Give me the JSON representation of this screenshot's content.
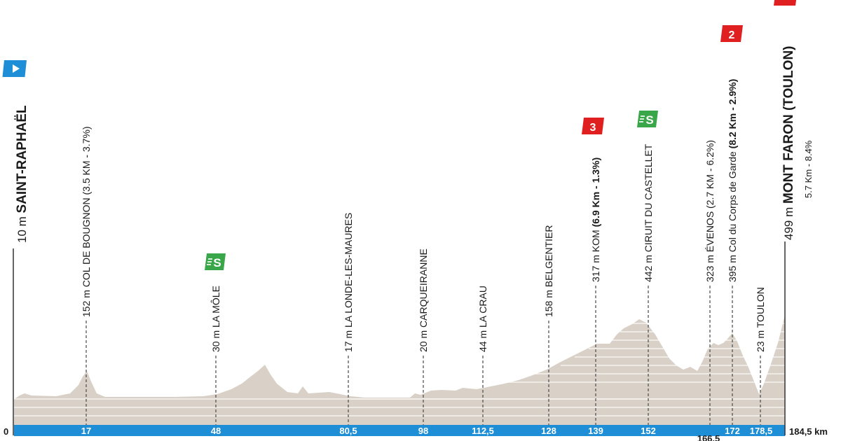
{
  "start": {
    "altitude": "10 m",
    "name": "SAINT-RAPHAËL",
    "km_label": "0"
  },
  "finish": {
    "altitude": "499 m",
    "name": "MONT FARON (TOULON)",
    "climb_info": "5.7 Km - 8.4%",
    "km_label": "184,5 km"
  },
  "waypoints": [
    {
      "km": "17",
      "text": "152 m COL DE BOUGNON (3.5 KM - 3.7%)"
    },
    {
      "km": "48",
      "text": "30 m LA MÔLE"
    },
    {
      "km": "80,5",
      "text": "17 m LA LONDE-LES-MAURES"
    },
    {
      "km": "98",
      "text": "20 m CARQUEIRANNE"
    },
    {
      "km": "112,5",
      "text": "44 m LA CRAU"
    },
    {
      "km": "128",
      "text": "158 m BELGENTIER"
    },
    {
      "km": "139",
      "text_pre": "317 m KOM ",
      "text_bold": "(6.9 Km - 1.3%)"
    },
    {
      "km": "152",
      "text": "442 m CIRUIT DU CASTELLET"
    },
    {
      "km": "166,5",
      "text": "323 m ÉVENOS (2.7 KM - 6.2%)"
    },
    {
      "km": "172",
      "text_pre": "395 m Col du Corps de Garde ",
      "text_bold": "(8.2 Km - 2.9%)"
    },
    {
      "km": "178,5",
      "text": "23 m TOULON"
    }
  ],
  "badges": {
    "sprint": "S",
    "kom_cat3": "3",
    "kom_cat2": "2"
  },
  "colors": {
    "terrain": "#d9d1c7",
    "distance_bar": "#1e8fd6",
    "sprint": "#3aa64a",
    "kom": "#e02020",
    "start_flag": "#1e8fd6"
  },
  "icons": [
    "start-flag-icon",
    "sprint-icon",
    "kom-icon"
  ]
}
